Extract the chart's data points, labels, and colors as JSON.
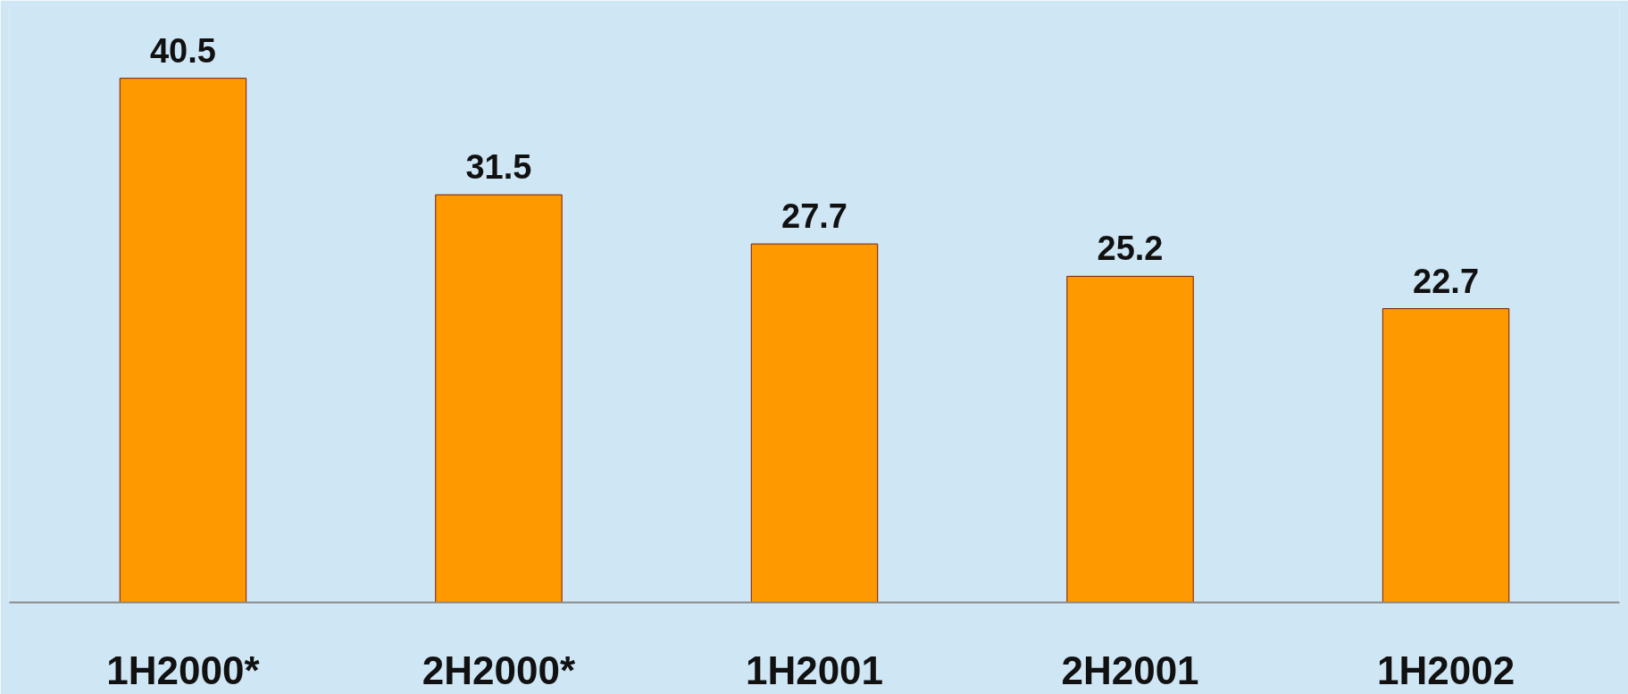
{
  "chart_data": {
    "type": "bar",
    "categories": [
      "1H2000*",
      "2H2000*",
      "1H2001",
      "2H2001",
      "1H2002"
    ],
    "values": [
      40.5,
      31.5,
      27.7,
      25.2,
      22.7
    ],
    "color": "#ff9900",
    "data_labels": true
  }
}
